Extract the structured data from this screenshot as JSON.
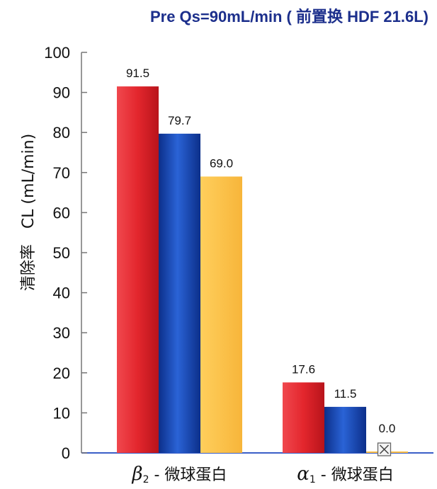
{
  "chart_data": {
    "type": "bar",
    "title": "Pre Qs=90mL/min ( 前置换 HDF 21.6L)",
    "ylabel": "清除率　CL (mL/min)",
    "xlabel": "",
    "ylim": [
      0,
      100
    ],
    "yticks": [
      0,
      10,
      20,
      30,
      40,
      50,
      60,
      70,
      80,
      90,
      100
    ],
    "categories": [
      {
        "greek": "β",
        "sub": "2",
        "rest": " - 微球蛋白"
      },
      {
        "greek": "α",
        "sub": "1",
        "rest": " - 微球蛋白"
      }
    ],
    "series": [
      {
        "color": "#e3262d",
        "values": [
          91.5,
          17.6
        ],
        "labels": [
          "91.5",
          "17.6"
        ]
      },
      {
        "color": "#1547b8",
        "values": [
          79.7,
          11.5
        ],
        "labels": [
          "79.7",
          "11.5"
        ]
      },
      {
        "color": "#fdbf45",
        "values": [
          69.0,
          0.0
        ],
        "labels": [
          "69.0",
          "0.0"
        ]
      }
    ],
    "grid": false,
    "legend": "none"
  }
}
